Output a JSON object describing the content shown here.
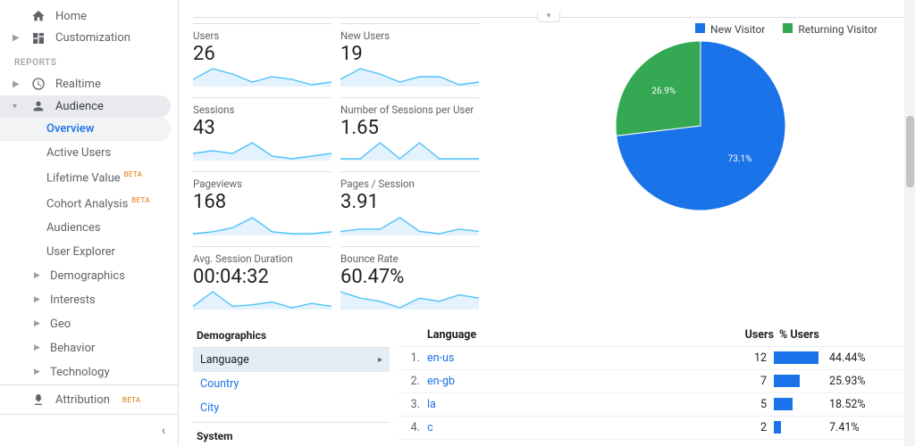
{
  "sidebar": {
    "home": "Home",
    "customization": "Customization",
    "reports_header": "REPORTS",
    "realtime": "Realtime",
    "audience": "Audience",
    "attribution": "Attribution",
    "attribution_beta": "BETA",
    "audience_items": [
      {
        "label": "Overview",
        "selected": true
      },
      {
        "label": "Active Users"
      },
      {
        "label": "Lifetime Value",
        "beta": "BETA"
      },
      {
        "label": "Cohort Analysis",
        "beta": "BETA"
      },
      {
        "label": "Audiences"
      },
      {
        "label": "User Explorer"
      }
    ],
    "audience_groups": [
      "Demographics",
      "Interests",
      "Geo",
      "Behavior",
      "Technology"
    ]
  },
  "metrics": {
    "users": {
      "label": "Users",
      "value": "26",
      "spark": [
        6,
        10,
        8,
        5,
        7,
        6,
        4,
        5
      ]
    },
    "new_users": {
      "label": "New Users",
      "value": "19",
      "spark": [
        5,
        9,
        7,
        4,
        6,
        6,
        3,
        4
      ]
    },
    "sessions": {
      "label": "Sessions",
      "value": "43",
      "spark": [
        6,
        7,
        6,
        10,
        5,
        4,
        5,
        6
      ]
    },
    "sessions_per_user": {
      "label": "Number of Sessions per User",
      "value": "1.65",
      "spark": [
        5,
        5,
        6,
        5,
        6,
        5,
        5,
        5
      ]
    },
    "pageviews": {
      "label": "Pageviews",
      "value": "168",
      "spark": [
        4,
        5,
        7,
        12,
        5,
        4,
        4,
        5
      ]
    },
    "pages_per_session": {
      "label": "Pages / Session",
      "value": "3.91",
      "spark": [
        5,
        6,
        6,
        11,
        5,
        4,
        6,
        5
      ]
    },
    "avg_session_duration": {
      "label": "Avg. Session Duration",
      "value": "00:04:32",
      "spark": [
        4,
        14,
        4,
        5,
        7,
        3,
        6,
        4
      ]
    },
    "bounce_rate": {
      "label": "Bounce Rate",
      "value": "60.47%",
      "spark": [
        8,
        6,
        5,
        3,
        6,
        5,
        7,
        6
      ]
    }
  },
  "spark_style": {
    "stroke": "#4fc3f7",
    "fill": "#e3f2fd",
    "width": 150,
    "height": 22
  },
  "pie": {
    "legend": [
      {
        "label": "New Visitor",
        "color": "#1a73e8"
      },
      {
        "label": "Returning Visitor",
        "color": "#34a853"
      }
    ],
    "slices": [
      {
        "label": "73.1%",
        "value": 73.1,
        "color": "#1a73e8"
      },
      {
        "label": "26.9%",
        "value": 26.9,
        "color": "#34a853"
      }
    ]
  },
  "dims": {
    "header": "Demographics",
    "rows": [
      "Language",
      "Country",
      "City"
    ],
    "selected": 0,
    "system_header": "System"
  },
  "lang_table": {
    "header": {
      "lang": "Language",
      "users": "Users",
      "pct": "% Users"
    },
    "bar_color": "#1a73e8",
    "bar_max_pct": 50,
    "rows": [
      {
        "idx": "1.",
        "name": "en-us",
        "users": "12",
        "pct": 44.44,
        "pct_label": "44.44%"
      },
      {
        "idx": "2.",
        "name": "en-gb",
        "users": "7",
        "pct": 25.93,
        "pct_label": "25.93%"
      },
      {
        "idx": "3.",
        "name": "la",
        "users": "5",
        "pct": 18.52,
        "pct_label": "18.52%"
      },
      {
        "idx": "4.",
        "name": "c",
        "users": "2",
        "pct": 7.41,
        "pct_label": "7.41%"
      }
    ]
  }
}
